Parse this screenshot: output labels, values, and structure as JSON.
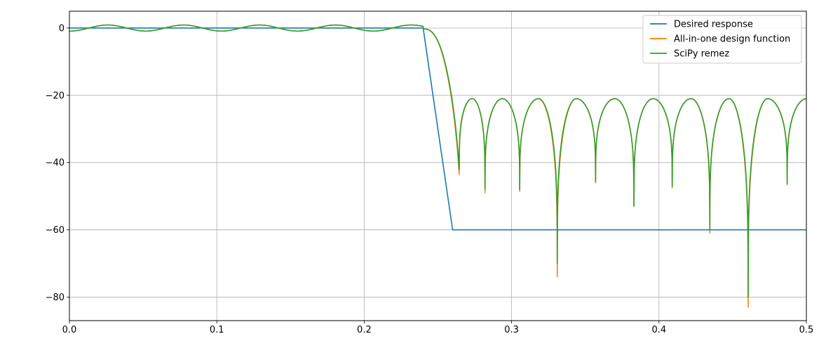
{
  "chart_data": {
    "type": "line",
    "title": "",
    "xlabel": "",
    "ylabel": "",
    "xlim": [
      0,
      0.5
    ],
    "ylim": [
      -87,
      5
    ],
    "xticks": [
      0.0,
      0.1,
      0.2,
      0.3,
      0.4,
      0.5
    ],
    "xtick_labels": [
      "0.0",
      "0.1",
      "0.2",
      "0.3",
      "0.4",
      "0.5"
    ],
    "yticks": [
      0,
      -20,
      -40,
      -60,
      -80
    ],
    "ytick_labels": [
      "0",
      "−20",
      "−40",
      "−60",
      "−80"
    ],
    "grid": true,
    "legend_position": "top-right",
    "passband_edge": 0.24,
    "stopband_edge": 0.26,
    "series": [
      {
        "name": "Desired response",
        "color": "#1f77b4",
        "points": [
          [
            0,
            0
          ],
          [
            0.24,
            0
          ],
          [
            0.26,
            -60
          ],
          [
            0.26,
            -60
          ],
          [
            0.5,
            -60
          ]
        ],
        "shape": "desired"
      },
      {
        "name": "All-in-one design function",
        "color": "#ff7f0e",
        "passband_ripple": 0.9,
        "ripple_peaks": [
          0.026,
          0.078,
          0.13,
          0.181,
          0.229
        ],
        "stopband_peak": -21,
        "nulls": [
          [
            0.2645,
            -43.5
          ],
          [
            0.282,
            -49
          ],
          [
            0.3055,
            -48.5
          ],
          [
            0.331,
            -74
          ],
          [
            0.357,
            -46
          ],
          [
            0.383,
            -53
          ],
          [
            0.409,
            -47.5
          ],
          [
            0.4345,
            -61
          ],
          [
            0.4605,
            -83
          ],
          [
            0.487,
            -46
          ]
        ]
      },
      {
        "name": "SciPy remez",
        "color": "#2ca02c",
        "passband_ripple": 0.9,
        "ripple_peaks": [
          0.026,
          0.078,
          0.13,
          0.181,
          0.229
        ],
        "stopband_peak": -21,
        "nulls": [
          [
            0.2645,
            -42
          ],
          [
            0.282,
            -48
          ],
          [
            0.3055,
            -48
          ],
          [
            0.331,
            -70
          ],
          [
            0.357,
            -45.5
          ],
          [
            0.383,
            -53
          ],
          [
            0.409,
            -47
          ],
          [
            0.4345,
            -60
          ],
          [
            0.4605,
            -80
          ],
          [
            0.487,
            -46.5
          ]
        ]
      }
    ]
  }
}
